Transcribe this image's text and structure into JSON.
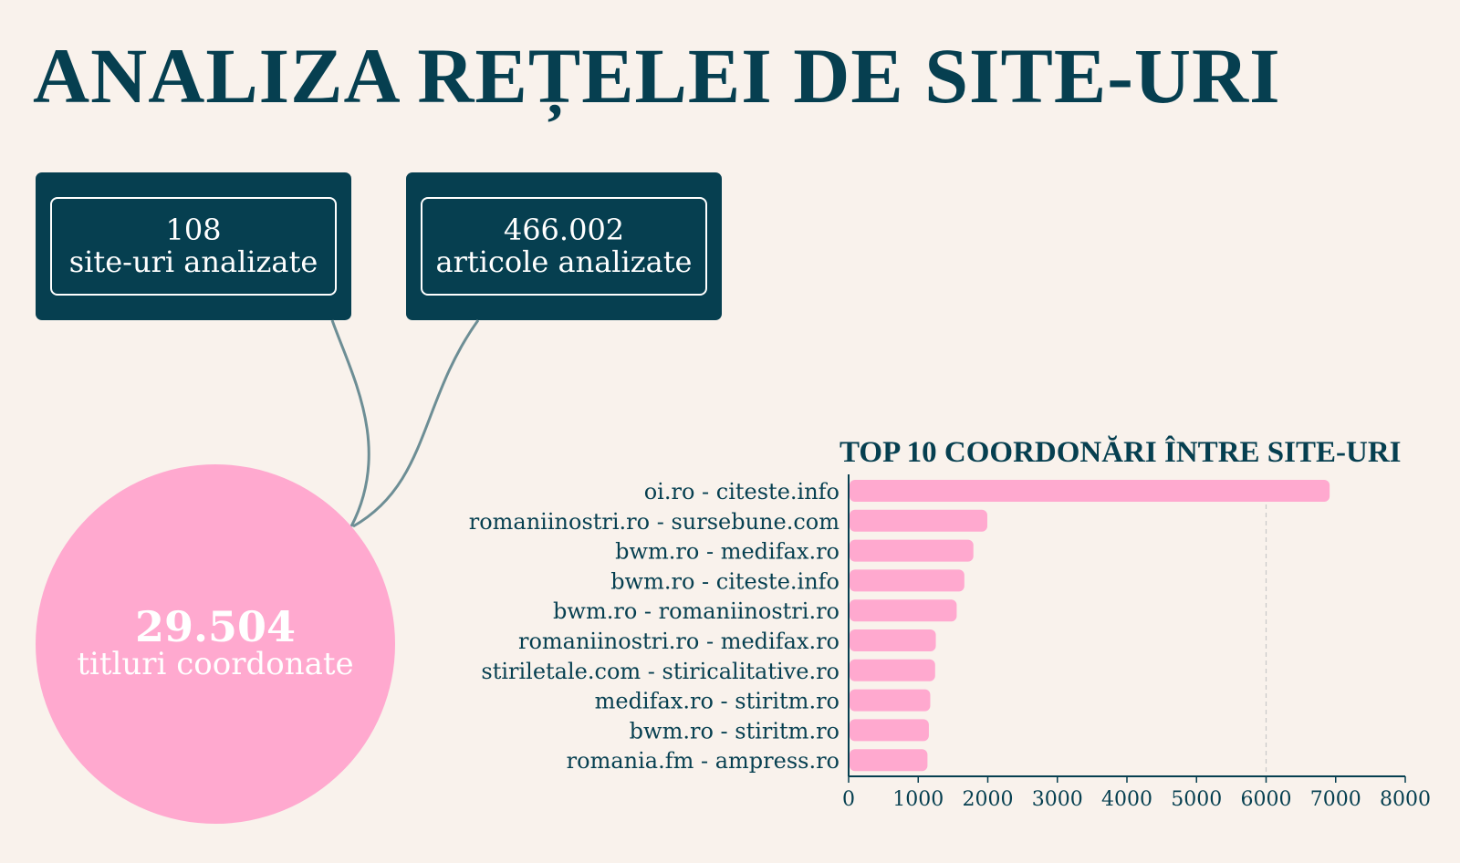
{
  "page": {
    "title": "ANALIZA REȚELEI DE SITE-URI"
  },
  "stats": {
    "sites": {
      "value": "108",
      "label": "site-uri analizate"
    },
    "articles": {
      "value": "466.002",
      "label": "articole analizate"
    },
    "coordinated": {
      "value": "29.504",
      "label": "titluri coordonate"
    }
  },
  "colors": {
    "background": "#f9f2ec",
    "navy": "#063f50",
    "pink": "#ffa9cf",
    "connector": "#6d8e95"
  },
  "chart_data": {
    "type": "bar",
    "orientation": "horizontal",
    "title": "TOP 10 COORDONĂRI ÎNTRE SITE-URI",
    "categories": [
      "oi.ro - citeste.info",
      "romaniinostri.ro - sursebune.com",
      "bwm.ro - medifax.ro",
      "bwm.ro - citeste.info",
      "bwm.ro - romaniinostri.ro",
      "romaniinostri.ro - medifax.ro",
      "stiriletale.com - stiricalitative.ro",
      "medifax.ro - stiritm.ro",
      "bwm.ro - stiritm.ro",
      "romania.fm - ampress.ro"
    ],
    "values": [
      6900,
      1980,
      1780,
      1650,
      1540,
      1240,
      1230,
      1160,
      1140,
      1120
    ],
    "xlim": [
      0,
      8000
    ],
    "xticks": [
      0,
      1000,
      2000,
      3000,
      4000,
      5000,
      6000,
      7000,
      8000
    ],
    "reference_line": 6000,
    "grid": false
  }
}
